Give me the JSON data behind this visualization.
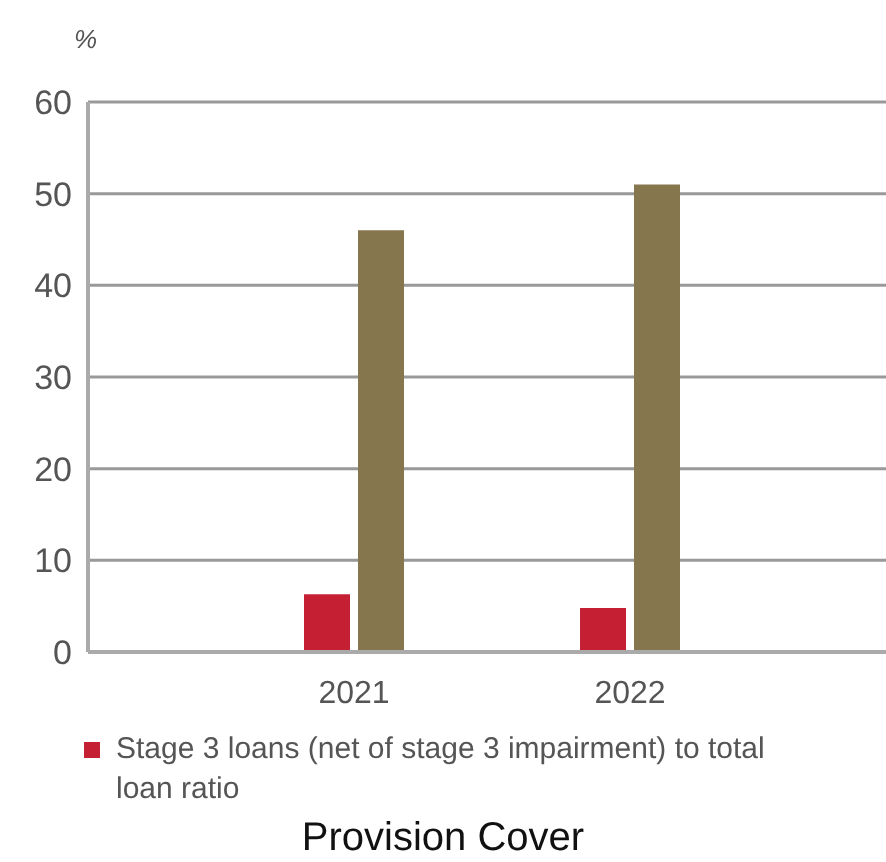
{
  "chart_data": {
    "type": "bar",
    "title": "Provision Cover",
    "ylabel": "%",
    "categories": [
      "2021",
      "2022"
    ],
    "series": [
      {
        "name": "Stage 3 loans (net of stage 3 impairment) to total loan ratio",
        "color": "#c41f33",
        "values": [
          6.3,
          4.8
        ]
      },
      {
        "color": "#85764e",
        "values": [
          46,
          51
        ]
      }
    ],
    "ylim": [
      0,
      60
    ],
    "yticks": [
      0,
      10,
      20,
      30,
      40,
      50,
      60
    ],
    "grid": "y",
    "legend": "bottom"
  }
}
